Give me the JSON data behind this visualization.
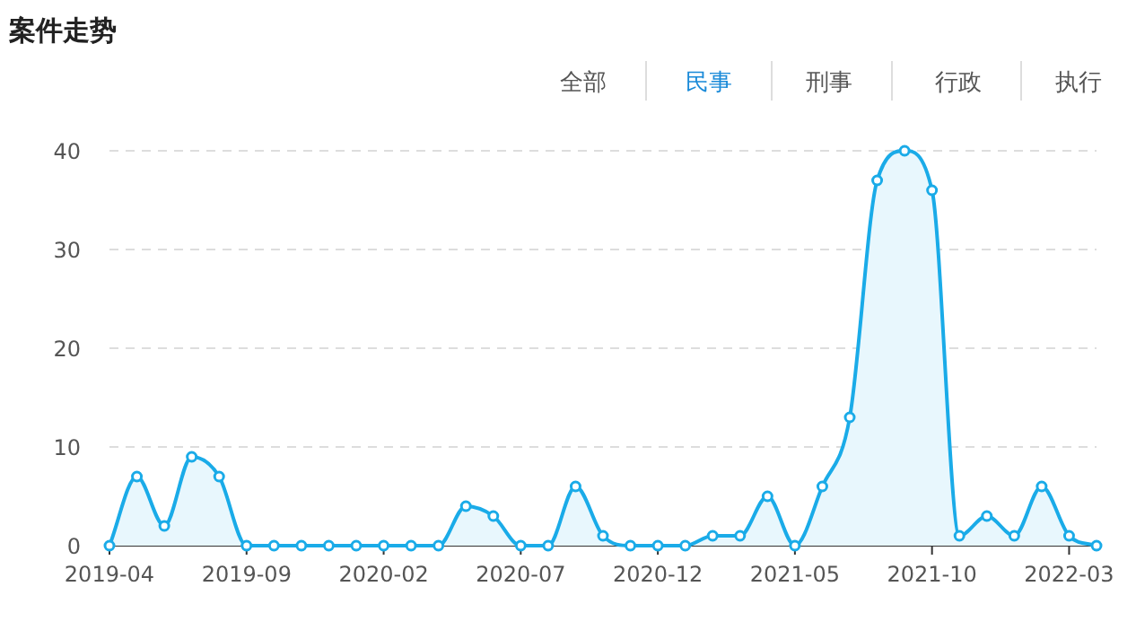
{
  "chart_data": {
    "type": "area",
    "title": "案件走势",
    "annotations": [
      "全部",
      "民事",
      "刑事",
      "行政",
      "执行"
    ],
    "x": [
      "2019-04",
      "2019-05",
      "2019-06",
      "2019-07",
      "2019-08",
      "2019-09",
      "2019-10",
      "2019-11",
      "2019-12",
      "2020-01",
      "2020-02",
      "2020-03",
      "2020-04",
      "2020-05",
      "2020-06",
      "2020-07",
      "2020-08",
      "2020-09",
      "2020-10",
      "2020-11",
      "2020-12",
      "2021-01",
      "2021-02",
      "2021-03",
      "2021-04",
      "2021-05",
      "2021-06",
      "2021-07",
      "2021-08",
      "2021-09",
      "2021-10",
      "2021-11",
      "2021-12",
      "2022-01",
      "2022-02",
      "2022-03",
      "2022-04"
    ],
    "series": [
      {
        "color": "#1aabe8",
        "values": [
          0,
          7,
          2,
          9,
          7,
          0,
          0,
          0,
          0,
          0,
          0,
          0,
          0,
          4,
          3,
          0,
          0,
          6,
          1,
          0,
          0,
          0,
          1,
          1,
          5,
          0,
          6,
          13,
          37,
          40,
          36,
          1,
          3,
          1,
          6,
          1,
          0
        ]
      }
    ],
    "xlim": [
      "2019-04",
      "2022-04"
    ],
    "xticks": [
      "2019-04",
      "2019-09",
      "2020-02",
      "2020-07",
      "2020-12",
      "2021-05",
      "2021-10",
      "2022-03"
    ],
    "ylim": [
      0,
      40
    ],
    "yticks": [
      0,
      10,
      20,
      30,
      40
    ],
    "grid": "y",
    "marker": "circle",
    "line_style": "solid"
  }
}
